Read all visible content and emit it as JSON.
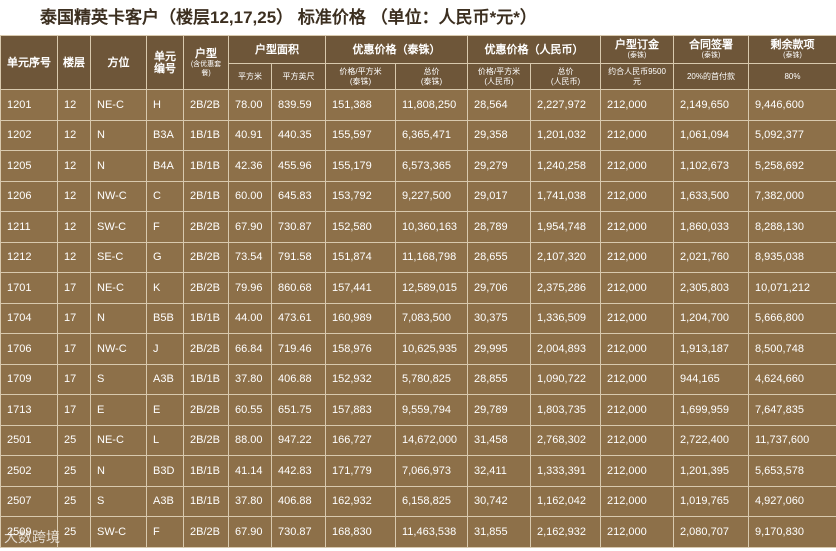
{
  "title": "泰国精英卡客户（楼层12,17,25） 标准价格 （单位：人民币*元*）",
  "columns": [
    {
      "label": "单元序号"
    },
    {
      "label": "楼层"
    },
    {
      "label": "方位"
    },
    {
      "label": "单元\n编号"
    },
    {
      "label": "户型",
      "note": "(含优惠套餐)"
    },
    {
      "label": "户型面积",
      "sub": [
        "平方米",
        "平方英尺"
      ]
    },
    {
      "label": "优惠价格（泰铢）",
      "sub": [
        "价格/平方米\n(泰铢)",
        "总价\n(泰铢)"
      ]
    },
    {
      "label": "优惠价格（人民币）",
      "sub": [
        "价格/平方米\n(人民币)",
        "总价\n(人民币)"
      ]
    },
    {
      "label": "户型订金",
      "note": "(泰铢)",
      "sub": [
        "约合人民币9500元"
      ]
    },
    {
      "label": "合同签署",
      "note": "(泰铢)",
      "sub": [
        "20%的首付款"
      ]
    },
    {
      "label": "剩余款项",
      "note": "(泰铢)",
      "sub": [
        "80%"
      ]
    }
  ],
  "rows": [
    [
      "1201",
      "12",
      "NE-C",
      "H",
      "2B/2B",
      "78.00",
      "839.59",
      "151,388",
      "11,808,250",
      "28,564",
      "2,227,972",
      "212,000",
      "2,149,650",
      "9,446,600"
    ],
    [
      "1202",
      "12",
      "N",
      "B3A",
      "1B/1B",
      "40.91",
      "440.35",
      "155,597",
      "6,365,471",
      "29,358",
      "1,201,032",
      "212,000",
      "1,061,094",
      "5,092,377"
    ],
    [
      "1205",
      "12",
      "N",
      "B4A",
      "1B/1B",
      "42.36",
      "455.96",
      "155,179",
      "6,573,365",
      "29,279",
      "1,240,258",
      "212,000",
      "1,102,673",
      "5,258,692"
    ],
    [
      "1206",
      "12",
      "NW-C",
      "C",
      "2B/1B",
      "60.00",
      "645.83",
      "153,792",
      "9,227,500",
      "29,017",
      "1,741,038",
      "212,000",
      "1,633,500",
      "7,382,000"
    ],
    [
      "1211",
      "12",
      "SW-C",
      "F",
      "2B/2B",
      "67.90",
      "730.87",
      "152,580",
      "10,360,163",
      "28,789",
      "1,954,748",
      "212,000",
      "1,860,033",
      "8,288,130"
    ],
    [
      "1212",
      "12",
      "SE-C",
      "G",
      "2B/2B",
      "73.54",
      "791.58",
      "151,874",
      "11,168,798",
      "28,655",
      "2,107,320",
      "212,000",
      "2,021,760",
      "8,935,038"
    ],
    [
      "1701",
      "17",
      "NE-C",
      "K",
      "2B/2B",
      "79.96",
      "860.68",
      "157,441",
      "12,589,015",
      "29,706",
      "2,375,286",
      "212,000",
      "2,305,803",
      "10,071,212"
    ],
    [
      "1704",
      "17",
      "N",
      "B5B",
      "1B/1B",
      "44.00",
      "473.61",
      "160,989",
      "7,083,500",
      "30,375",
      "1,336,509",
      "212,000",
      "1,204,700",
      "5,666,800"
    ],
    [
      "1706",
      "17",
      "NW-C",
      "J",
      "2B/2B",
      "66.84",
      "719.46",
      "158,976",
      "10,625,935",
      "29,995",
      "2,004,893",
      "212,000",
      "1,913,187",
      "8,500,748"
    ],
    [
      "1709",
      "17",
      "S",
      "A3B",
      "1B/1B",
      "37.80",
      "406.88",
      "152,932",
      "5,780,825",
      "28,855",
      "1,090,722",
      "212,000",
      "944,165",
      "4,624,660"
    ],
    [
      "1713",
      "17",
      "E",
      "E",
      "2B/2B",
      "60.55",
      "651.75",
      "157,883",
      "9,559,794",
      "29,789",
      "1,803,735",
      "212,000",
      "1,699,959",
      "7,647,835"
    ],
    [
      "2501",
      "25",
      "NE-C",
      "L",
      "2B/2B",
      "88.00",
      "947.22",
      "166,727",
      "14,672,000",
      "31,458",
      "2,768,302",
      "212,000",
      "2,722,400",
      "11,737,600"
    ],
    [
      "2502",
      "25",
      "N",
      "B3D",
      "1B/1B",
      "41.14",
      "442.83",
      "171,779",
      "7,066,973",
      "32,411",
      "1,333,391",
      "212,000",
      "1,201,395",
      "5,653,578"
    ],
    [
      "2507",
      "25",
      "S",
      "A3B",
      "1B/1B",
      "37.80",
      "406.88",
      "162,932",
      "6,158,825",
      "30,742",
      "1,162,042",
      "212,000",
      "1,019,765",
      "4,927,060"
    ],
    [
      "2509",
      "25",
      "SW-C",
      "F",
      "2B/2B",
      "67.90",
      "730.87",
      "168,830",
      "11,463,538",
      "31,855",
      "2,162,932",
      "212,000",
      "2,080,707",
      "9,170,830"
    ]
  ],
  "watermark": "大数跨境"
}
